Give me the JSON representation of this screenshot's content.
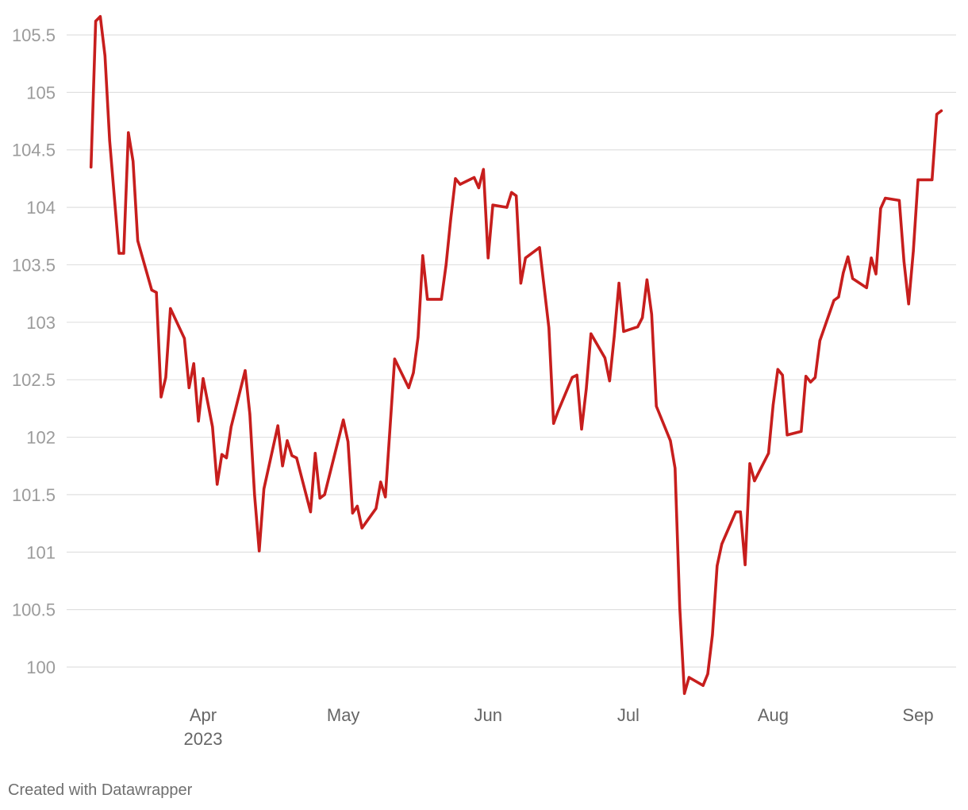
{
  "chart_data": {
    "type": "line",
    "title": "",
    "xlabel": "",
    "ylabel": "",
    "ylim": [
      99.8,
      105.6
    ],
    "y_ticks": [
      "105.5",
      "105",
      "104.5",
      "104",
      "103.5",
      "103",
      "102.5",
      "102",
      "101.5",
      "101",
      "100.5",
      "100"
    ],
    "y_tick_values": [
      105.5,
      105,
      104.5,
      104,
      103.5,
      103,
      102.5,
      102,
      101.5,
      101,
      100.5,
      100
    ],
    "x_ticks": [
      {
        "label": "Apr",
        "sublabel": "2023",
        "date": "2023-04-01"
      },
      {
        "label": "May",
        "sublabel": "",
        "date": "2023-05-01"
      },
      {
        "label": "Jun",
        "sublabel": "",
        "date": "2023-06-01"
      },
      {
        "label": "Jul",
        "sublabel": "",
        "date": "2023-07-01"
      },
      {
        "label": "Aug",
        "sublabel": "",
        "date": "2023-08-01"
      },
      {
        "label": "Sep",
        "sublabel": "",
        "date": "2023-09-01"
      }
    ],
    "xlim": [
      "2023-03-08",
      "2023-09-06"
    ],
    "grid": true,
    "series": [
      {
        "color": "#c71e1d",
        "points": [
          [
            "2023-03-08",
            104.35
          ],
          [
            "2023-03-09",
            105.62
          ],
          [
            "2023-03-10",
            105.66
          ],
          [
            "2023-03-11",
            105.32
          ],
          [
            "2023-03-12",
            104.58
          ],
          [
            "2023-03-14",
            103.6
          ],
          [
            "2023-03-15",
            103.6
          ],
          [
            "2023-03-16",
            104.65
          ],
          [
            "2023-03-17",
            104.4
          ],
          [
            "2023-03-18",
            103.71
          ],
          [
            "2023-03-21",
            103.28
          ],
          [
            "2023-03-22",
            103.26
          ],
          [
            "2023-03-23",
            102.35
          ],
          [
            "2023-03-24",
            102.52
          ],
          [
            "2023-03-25",
            103.12
          ],
          [
            "2023-03-28",
            102.86
          ],
          [
            "2023-03-29",
            102.43
          ],
          [
            "2023-03-30",
            102.64
          ],
          [
            "2023-03-31",
            102.14
          ],
          [
            "2023-04-01",
            102.51
          ],
          [
            "2023-04-03",
            102.09
          ],
          [
            "2023-04-04",
            101.59
          ],
          [
            "2023-04-05",
            101.85
          ],
          [
            "2023-04-06",
            101.82
          ],
          [
            "2023-04-07",
            102.09
          ],
          [
            "2023-04-10",
            102.58
          ],
          [
            "2023-04-11",
            102.2
          ],
          [
            "2023-04-12",
            101.5
          ],
          [
            "2023-04-13",
            101.01
          ],
          [
            "2023-04-14",
            101.55
          ],
          [
            "2023-04-17",
            102.1
          ],
          [
            "2023-04-18",
            101.75
          ],
          [
            "2023-04-19",
            101.97
          ],
          [
            "2023-04-20",
            101.84
          ],
          [
            "2023-04-21",
            101.82
          ],
          [
            "2023-04-24",
            101.35
          ],
          [
            "2023-04-25",
            101.86
          ],
          [
            "2023-04-26",
            101.47
          ],
          [
            "2023-04-27",
            101.5
          ],
          [
            "2023-05-01",
            102.15
          ],
          [
            "2023-05-02",
            101.96
          ],
          [
            "2023-05-03",
            101.34
          ],
          [
            "2023-05-04",
            101.4
          ],
          [
            "2023-05-05",
            101.21
          ],
          [
            "2023-05-08",
            101.38
          ],
          [
            "2023-05-09",
            101.61
          ],
          [
            "2023-05-10",
            101.48
          ],
          [
            "2023-05-12",
            102.68
          ],
          [
            "2023-05-15",
            102.43
          ],
          [
            "2023-05-16",
            102.56
          ],
          [
            "2023-05-17",
            102.87
          ],
          [
            "2023-05-18",
            103.58
          ],
          [
            "2023-05-19",
            103.2
          ],
          [
            "2023-05-22",
            103.2
          ],
          [
            "2023-05-23",
            103.5
          ],
          [
            "2023-05-24",
            103.9
          ],
          [
            "2023-05-25",
            104.25
          ],
          [
            "2023-05-26",
            104.2
          ],
          [
            "2023-05-29",
            104.26
          ],
          [
            "2023-05-30",
            104.17
          ],
          [
            "2023-05-31",
            104.33
          ],
          [
            "2023-06-01",
            103.56
          ],
          [
            "2023-06-02",
            104.02
          ],
          [
            "2023-06-05",
            104
          ],
          [
            "2023-06-06",
            104.13
          ],
          [
            "2023-06-07",
            104.1
          ],
          [
            "2023-06-08",
            103.34
          ],
          [
            "2023-06-09",
            103.56
          ],
          [
            "2023-06-12",
            103.65
          ],
          [
            "2023-06-13",
            103.3
          ],
          [
            "2023-06-14",
            102.95
          ],
          [
            "2023-06-15",
            102.12
          ],
          [
            "2023-06-16",
            102.23
          ],
          [
            "2023-06-19",
            102.52
          ],
          [
            "2023-06-20",
            102.54
          ],
          [
            "2023-06-21",
            102.07
          ],
          [
            "2023-06-22",
            102.42
          ],
          [
            "2023-06-23",
            102.9
          ],
          [
            "2023-06-26",
            102.69
          ],
          [
            "2023-06-27",
            102.49
          ],
          [
            "2023-06-28",
            102.88
          ],
          [
            "2023-06-29",
            103.34
          ],
          [
            "2023-06-30",
            102.92
          ],
          [
            "2023-07-03",
            102.96
          ],
          [
            "2023-07-04",
            103.04
          ],
          [
            "2023-07-05",
            103.37
          ],
          [
            "2023-07-06",
            103.07
          ],
          [
            "2023-07-07",
            102.27
          ],
          [
            "2023-07-10",
            101.97
          ],
          [
            "2023-07-11",
            101.73
          ],
          [
            "2023-07-12",
            100.52
          ],
          [
            "2023-07-13",
            99.77
          ],
          [
            "2023-07-14",
            99.91
          ],
          [
            "2023-07-17",
            99.84
          ],
          [
            "2023-07-18",
            99.94
          ],
          [
            "2023-07-19",
            100.28
          ],
          [
            "2023-07-20",
            100.88
          ],
          [
            "2023-07-21",
            101.07
          ],
          [
            "2023-07-24",
            101.35
          ],
          [
            "2023-07-25",
            101.35
          ],
          [
            "2023-07-26",
            100.89
          ],
          [
            "2023-07-27",
            101.77
          ],
          [
            "2023-07-28",
            101.62
          ],
          [
            "2023-07-31",
            101.86
          ],
          [
            "2023-08-01",
            102.28
          ],
          [
            "2023-08-02",
            102.59
          ],
          [
            "2023-08-03",
            102.54
          ],
          [
            "2023-08-04",
            102.02
          ],
          [
            "2023-08-07",
            102.05
          ],
          [
            "2023-08-08",
            102.53
          ],
          [
            "2023-08-09",
            102.48
          ],
          [
            "2023-08-10",
            102.52
          ],
          [
            "2023-08-11",
            102.84
          ],
          [
            "2023-08-14",
            103.19
          ],
          [
            "2023-08-15",
            103.22
          ],
          [
            "2023-08-16",
            103.43
          ],
          [
            "2023-08-17",
            103.57
          ],
          [
            "2023-08-18",
            103.38
          ],
          [
            "2023-08-21",
            103.3
          ],
          [
            "2023-08-22",
            103.56
          ],
          [
            "2023-08-23",
            103.42
          ],
          [
            "2023-08-24",
            103.99
          ],
          [
            "2023-08-25",
            104.08
          ],
          [
            "2023-08-28",
            104.06
          ],
          [
            "2023-08-29",
            103.53
          ],
          [
            "2023-08-30",
            103.16
          ],
          [
            "2023-08-31",
            103.62
          ],
          [
            "2023-09-01",
            104.24
          ],
          [
            "2023-09-04",
            104.24
          ],
          [
            "2023-09-05",
            104.81
          ],
          [
            "2023-09-06",
            104.84
          ]
        ]
      }
    ]
  },
  "credit": "Created with Datawrapper"
}
